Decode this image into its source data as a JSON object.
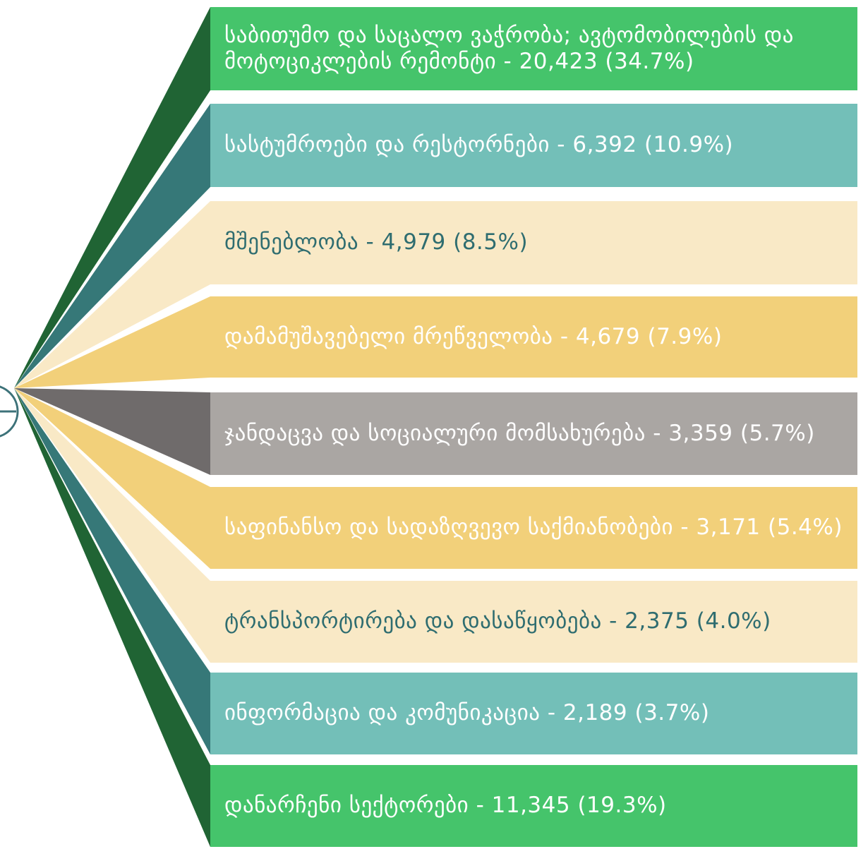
{
  "colors": {
    "green": "#45c46b",
    "teal": "#73bfb8",
    "cream": "#f9e9c6",
    "gold": "#f2d07a",
    "gray": "#aaa6a3",
    "dark_green": "#206434",
    "dark_teal": "#367878",
    "dark_gray": "#6f6b6b",
    "circle": "#3d7279"
  },
  "sectors": [
    {
      "label": "საბითუმო და საცალო ვაჭრობა; ავტომობილების და მოტოციკლების რემონტი - 20,423 (34.7%)",
      "value": 20423,
      "percent": 34.7,
      "color": "green"
    },
    {
      "label": "სასტუმროები და რესტორნები - 6,392 (10.9%)",
      "value": 6392,
      "percent": 10.9,
      "color": "teal"
    },
    {
      "label": "მშენებლობა - 4,979 (8.5%)",
      "value": 4979,
      "percent": 8.5,
      "color": "cream"
    },
    {
      "label": "დამამუშავებელი მრეწველობა - 4,679 (7.9%)",
      "value": 4679,
      "percent": 7.9,
      "color": "gold"
    },
    {
      "label": "ჯანდაცვა და სოციალური მომსახურება - 3,359 (5.7%)",
      "value": 3359,
      "percent": 5.7,
      "color": "gray"
    },
    {
      "label": "საფინანსო და სადაზღვევო საქმიანობები - 3,171 (5.4%)",
      "value": 3171,
      "percent": 5.4,
      "color": "gold"
    },
    {
      "label": "ტრანსპორტირება და დასაწყობება - 2,375 (4.0%)",
      "value": 2375,
      "percent": 4.0,
      "color": "cream"
    },
    {
      "label": "ინფორმაცია და კომუნიკაცია - 2,189 (3.7%)",
      "value": 2189,
      "percent": 3.7,
      "color": "teal"
    },
    {
      "label": "დანარჩენი სექტორები - 11,345 (19.3%)",
      "value": 11345,
      "percent": 19.3,
      "color": "green"
    }
  ]
}
